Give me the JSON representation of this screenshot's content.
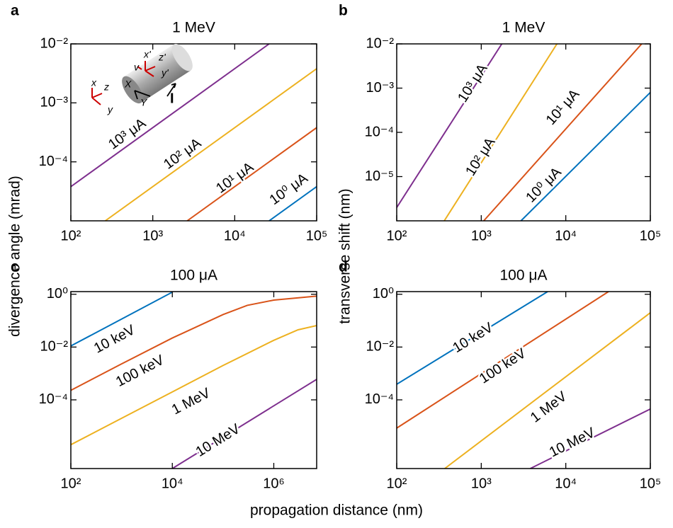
{
  "chart_data": [
    {
      "type": "line",
      "panel": "a",
      "title": "1 MeV",
      "ylabel": "divergence angle (mrad)",
      "xscale": "log",
      "yscale": "log",
      "xlim": [
        100,
        100000
      ],
      "ylim": [
        1e-05,
        0.01
      ],
      "xticks": [
        {
          "value": 100,
          "label": "10²"
        },
        {
          "value": 1000,
          "label": "10³"
        },
        {
          "value": 10000,
          "label": "10⁴"
        },
        {
          "value": 100000,
          "label": "10⁵"
        }
      ],
      "yticks": [
        {
          "value": 0.0001,
          "label": "10⁻⁴"
        },
        {
          "value": 0.001,
          "label": "10⁻³"
        },
        {
          "value": 0.01,
          "label": "10⁻²"
        }
      ],
      "inset_labels": [
        "x",
        "z",
        "y",
        "x'",
        "z'",
        "y'",
        "v",
        "X",
        "Y",
        "I"
      ],
      "series": [
        {
          "name": "10³ μA",
          "color": "#7e2f8e",
          "x": [
            100,
            26300
          ],
          "values": [
            3.8e-05,
            0.01
          ]
        },
        {
          "name": "10² μA",
          "color": "#edb120",
          "x": [
            263,
            100000
          ],
          "values": [
            1e-05,
            0.0038
          ]
        },
        {
          "name": "10¹ μA",
          "color": "#d95319",
          "x": [
            2630,
            100000
          ],
          "values": [
            1e-05,
            0.00038
          ]
        },
        {
          "name": "10⁰ μA",
          "color": "#0072bd",
          "x": [
            26300,
            100000
          ],
          "values": [
            1e-05,
            3.8e-05
          ]
        }
      ]
    },
    {
      "type": "line",
      "panel": "b",
      "title": "1 MeV",
      "ylabel": "transverse shift (nm)",
      "xscale": "log",
      "yscale": "log",
      "xlim": [
        100,
        100000
      ],
      "ylim": [
        1e-06,
        0.01
      ],
      "xticks": [
        {
          "value": 100,
          "label": "10²"
        },
        {
          "value": 1000,
          "label": "10³"
        },
        {
          "value": 10000,
          "label": "10⁴"
        },
        {
          "value": 100000,
          "label": "10⁵"
        }
      ],
      "yticks": [
        {
          "value": 1e-05,
          "label": "10⁻⁵"
        },
        {
          "value": 0.0001,
          "label": "10⁻⁴"
        },
        {
          "value": 0.001,
          "label": "10⁻³"
        },
        {
          "value": 0.01,
          "label": "10⁻²"
        }
      ],
      "series": [
        {
          "name": "10³ μA",
          "color": "#7e2f8e",
          "x": [
            100,
            1750
          ],
          "values": [
            2e-06,
            0.01
          ]
        },
        {
          "name": "10² μA",
          "color": "#edb120",
          "x": [
            365,
            7860
          ],
          "values": [
            1e-06,
            0.01
          ]
        },
        {
          "name": "10¹ μA",
          "color": "#d95319",
          "x": [
            1070,
            79000
          ],
          "values": [
            1e-06,
            0.01
          ]
        },
        {
          "name": "10⁰ μA",
          "color": "#0072bd",
          "x": [
            2950,
            100000
          ],
          "values": [
            1e-06,
            0.0008
          ]
        }
      ]
    },
    {
      "type": "line",
      "panel": "c",
      "title": "100 μA",
      "xlabel": "propagation distance (nm)",
      "xscale": "log",
      "yscale": "log",
      "xlim": [
        100,
        7000000
      ],
      "ylim": [
        2.5e-07,
        1.26
      ],
      "xticks": [
        {
          "value": 100,
          "label": "10²"
        },
        {
          "value": 10000,
          "label": "10⁴"
        },
        {
          "value": 1000000,
          "label": "10⁶"
        }
      ],
      "yticks": [
        {
          "value": 0.0001,
          "label": "10⁻⁴"
        },
        {
          "value": 0.01,
          "label": "10⁻²"
        },
        {
          "value": 1,
          "label": "10⁰"
        }
      ],
      "series": [
        {
          "name": "10 keV",
          "color": "#0072bd",
          "x": [
            100,
            10000
          ],
          "values": [
            0.011,
            1.2
          ]
        },
        {
          "name": "100 keV",
          "color": "#d95319",
          "x": [
            100,
            1000,
            10000,
            100000,
            300000,
            1000000,
            7000000
          ],
          "values": [
            0.00023,
            0.0023,
            0.022,
            0.17,
            0.38,
            0.6,
            0.85
          ]
        },
        {
          "name": "1 MeV",
          "color": "#edb120",
          "x": [
            100,
            1000,
            10000,
            100000,
            1000000,
            3000000,
            7000000
          ],
          "values": [
            2e-06,
            2e-05,
            0.0002,
            0.002,
            0.018,
            0.045,
            0.065
          ]
        },
        {
          "name": "10 MeV",
          "color": "#7e2f8e",
          "x": [
            10000,
            7000000
          ],
          "values": [
            2.5e-07,
            0.0006
          ]
        }
      ]
    },
    {
      "type": "line",
      "panel": "d",
      "title": "100 μA",
      "xscale": "log",
      "yscale": "log",
      "xlim": [
        100,
        100000
      ],
      "ylim": [
        2.5e-07,
        1.26
      ],
      "xticks": [
        {
          "value": 100,
          "label": "10²"
        },
        {
          "value": 1000,
          "label": "10³"
        },
        {
          "value": 10000,
          "label": "10⁴"
        },
        {
          "value": 100000,
          "label": "10⁵"
        }
      ],
      "yticks": [
        {
          "value": 0.0001,
          "label": "10⁻⁴"
        },
        {
          "value": 0.01,
          "label": "10⁻²"
        },
        {
          "value": 1,
          "label": "10⁰"
        }
      ],
      "series": [
        {
          "name": "10 keV",
          "color": "#0072bd",
          "x": [
            100,
            6100
          ],
          "values": [
            0.00039,
            1.26
          ]
        },
        {
          "name": "100 keV",
          "color": "#d95319",
          "x": [
            100,
            32000
          ],
          "values": [
            8.5e-06,
            1.26
          ]
        },
        {
          "name": "1 MeV",
          "color": "#edb120",
          "x": [
            370,
            100000
          ],
          "values": [
            2.5e-07,
            0.2
          ]
        },
        {
          "name": "10 MeV",
          "color": "#7e2f8e",
          "x": [
            3800,
            100000
          ],
          "values": [
            2.5e-07,
            4.5e-05
          ]
        }
      ]
    }
  ]
}
